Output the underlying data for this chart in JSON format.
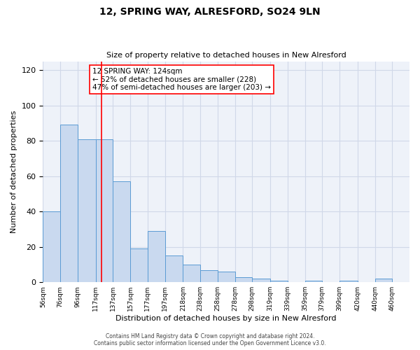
{
  "title": "12, SPRING WAY, ALRESFORD, SO24 9LN",
  "subtitle": "Size of property relative to detached houses in New Alresford",
  "xlabel": "Distribution of detached houses by size in New Alresford",
  "ylabel": "Number of detached properties",
  "bar_left_edges": [
    56,
    76,
    96,
    117,
    137,
    157,
    177,
    197,
    218,
    238,
    258,
    278,
    298,
    319,
    339,
    359,
    379,
    399,
    420,
    440
  ],
  "bar_widths": [
    20,
    20,
    21,
    20,
    20,
    20,
    20,
    21,
    20,
    20,
    20,
    20,
    21,
    20,
    20,
    20,
    20,
    21,
    20,
    20
  ],
  "bar_heights": [
    40,
    89,
    81,
    81,
    57,
    19,
    29,
    15,
    10,
    7,
    6,
    3,
    2,
    1,
    0,
    1,
    0,
    1,
    0,
    2
  ],
  "bar_color": "#c9d9ef",
  "bar_edge_color": "#5a9bd4",
  "ylim": [
    0,
    125
  ],
  "yticks": [
    0,
    20,
    40,
    60,
    80,
    100,
    120
  ],
  "xtick_labels": [
    "56sqm",
    "76sqm",
    "96sqm",
    "117sqm",
    "137sqm",
    "157sqm",
    "177sqm",
    "197sqm",
    "218sqm",
    "238sqm",
    "258sqm",
    "278sqm",
    "298sqm",
    "319sqm",
    "339sqm",
    "359sqm",
    "379sqm",
    "399sqm",
    "420sqm",
    "440sqm",
    "460sqm"
  ],
  "property_line_x": 124,
  "property_line_label": "12 SPRING WAY: 124sqm",
  "annotation_line1": "← 52% of detached houses are smaller (228)",
  "annotation_line2": "47% of semi-detached houses are larger (203) →",
  "grid_color": "#d0d8e8",
  "bg_color": "#eef2f9",
  "footer1": "Contains HM Land Registry data © Crown copyright and database right 2024.",
  "footer2": "Contains public sector information licensed under the Open Government Licence v3.0."
}
